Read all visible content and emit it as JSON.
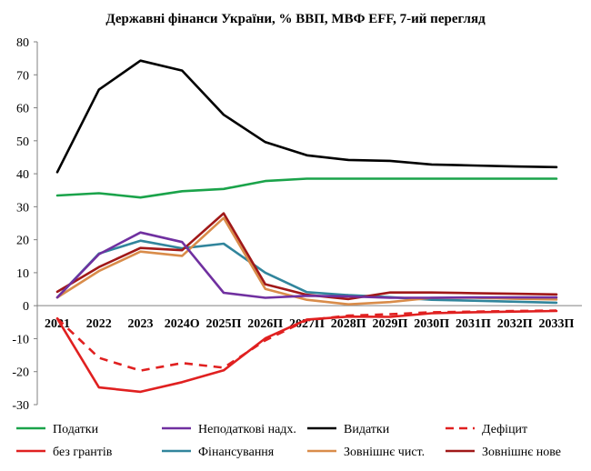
{
  "chart_data": {
    "type": "line",
    "title": "Державні фінанси України, % ВВП, МВФ EFF, 7-ий перегляд",
    "xlabel": "",
    "ylabel": "",
    "ylim": [
      -30,
      80
    ],
    "yticks": [
      -30,
      -20,
      -10,
      0,
      10,
      20,
      30,
      40,
      50,
      60,
      70,
      80
    ],
    "grid": false,
    "legend_position": "bottom",
    "categories": [
      "2021",
      "2022",
      "2023",
      "2024О",
      "2025П",
      "2026П",
      "2027П",
      "2028П",
      "2029П",
      "2030П",
      "2031П",
      "2032П",
      "2033П"
    ],
    "series": [
      {
        "name": "Податки",
        "color": "#1aa34a",
        "dash": "solid",
        "values": [
          33.4,
          34.1,
          32.8,
          34.7,
          35.4,
          37.8,
          38.5,
          38.5,
          38.5,
          38.5,
          38.5,
          38.5,
          38.5
        ]
      },
      {
        "name": "Неподаткові надх.",
        "color": "#7030a0",
        "dash": "solid",
        "values": [
          2.5,
          15.6,
          22.2,
          19.3,
          3.9,
          2.4,
          3.0,
          2.8,
          2.4,
          2.4,
          2.5,
          2.5,
          2.5
        ]
      },
      {
        "name": "Видатки",
        "color": "#000000",
        "dash": "solid",
        "values": [
          40.5,
          65.5,
          74.3,
          71.3,
          57.9,
          49.6,
          45.6,
          44.2,
          43.9,
          42.8,
          42.5,
          42.2,
          42.0
        ]
      },
      {
        "name": "Дефіцит",
        "color": "#e02020",
        "dash": "dashed",
        "values": [
          -3.9,
          -15.8,
          -19.7,
          -17.4,
          -18.8,
          -10.5,
          -4.4,
          -3.0,
          -2.6,
          -2.0,
          -1.8,
          -1.6,
          -1.5
        ]
      },
      {
        "name": "без грантів",
        "color": "#e02020",
        "dash": "solid",
        "values": [
          -3.9,
          -24.8,
          -26.1,
          -23.2,
          -19.6,
          -9.9,
          -4.2,
          -3.3,
          -3.4,
          -2.3,
          -2.0,
          -1.8,
          -1.6
        ]
      },
      {
        "name": "Фінансування",
        "color": "#31859c",
        "dash": "solid",
        "values": [
          2.5,
          15.8,
          19.7,
          17.4,
          18.8,
          10.0,
          4.1,
          3.2,
          2.6,
          1.8,
          1.5,
          1.2,
          0.9
        ]
      },
      {
        "name": "Зовнішнє чист.",
        "color": "#d98c4a",
        "dash": "solid",
        "values": [
          2.5,
          10.5,
          16.4,
          15.1,
          26.6,
          5.1,
          1.8,
          0.4,
          1.1,
          2.4,
          2.4,
          2.1,
          1.9
        ]
      },
      {
        "name": "Зовнішнє нове",
        "color": "#a01818",
        "dash": "solid",
        "values": [
          4.2,
          11.7,
          17.5,
          16.8,
          28.0,
          6.5,
          3.3,
          2.0,
          4.0,
          4.0,
          3.8,
          3.6,
          3.4
        ]
      }
    ]
  }
}
